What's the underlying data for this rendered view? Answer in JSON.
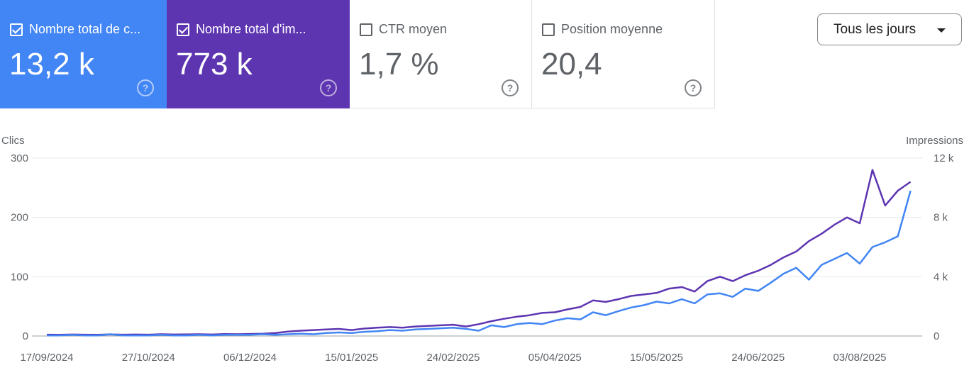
{
  "cards": [
    {
      "label": "Nombre total de c...",
      "value": "13,2 k",
      "checked": true,
      "color": "#4285f4"
    },
    {
      "label": "Nombre total d'im...",
      "value": "773 k",
      "checked": true,
      "color": "#5e35b1"
    },
    {
      "label": "CTR moyen",
      "value": "1,7 %",
      "checked": false
    },
    {
      "label": "Position moyenne",
      "value": "20,4",
      "checked": false
    }
  ],
  "help_icon": "?",
  "date_range": {
    "selected": "Tous les jours"
  },
  "chart_data": {
    "type": "line",
    "ylabel": "Clics",
    "y2label": "Impressions",
    "ylim": [
      0,
      300
    ],
    "y2lim": [
      0,
      12000
    ],
    "yticks": [
      "0",
      "100",
      "200",
      "300"
    ],
    "y2ticks": [
      "0",
      "4 k",
      "8 k",
      "12 k"
    ],
    "xticks": [
      "17/09/2024",
      "27/10/2024",
      "06/12/2024",
      "15/01/2025",
      "24/02/2025",
      "05/04/2025",
      "15/05/2025",
      "24/06/2025",
      "03/08/2025"
    ],
    "grid": true,
    "x": [
      "2024-09-17",
      "2024-09-22",
      "2024-09-27",
      "2024-10-02",
      "2024-10-07",
      "2024-10-12",
      "2024-10-17",
      "2024-10-22",
      "2024-10-27",
      "2024-11-01",
      "2024-11-06",
      "2024-11-11",
      "2024-11-16",
      "2024-11-21",
      "2024-11-26",
      "2024-12-01",
      "2024-12-06",
      "2024-12-11",
      "2024-12-16",
      "2024-12-21",
      "2024-12-26",
      "2024-12-31",
      "2025-01-05",
      "2025-01-10",
      "2025-01-15",
      "2025-01-20",
      "2025-01-25",
      "2025-01-30",
      "2025-02-04",
      "2025-02-09",
      "2025-02-14",
      "2025-02-19",
      "2025-02-24",
      "2025-03-01",
      "2025-03-06",
      "2025-03-11",
      "2025-03-16",
      "2025-03-21",
      "2025-03-26",
      "2025-03-31",
      "2025-04-05",
      "2025-04-10",
      "2025-04-15",
      "2025-04-20",
      "2025-04-25",
      "2025-04-30",
      "2025-05-05",
      "2025-05-10",
      "2025-05-15",
      "2025-05-20",
      "2025-05-25",
      "2025-05-30",
      "2025-06-04",
      "2025-06-09",
      "2025-06-14",
      "2025-06-19",
      "2025-06-24",
      "2025-06-29",
      "2025-07-04",
      "2025-07-09",
      "2025-07-14",
      "2025-07-19",
      "2025-07-24",
      "2025-07-29",
      "2025-08-03",
      "2025-08-08",
      "2025-08-13",
      "2025-08-18",
      "2025-08-23"
    ],
    "series": [
      {
        "name": "Clics",
        "axis": "left",
        "color": "#4285f4",
        "values": [
          1,
          1,
          2,
          1,
          1,
          3,
          1,
          1,
          1,
          2,
          1,
          1,
          2,
          1,
          2,
          2,
          2,
          3,
          2,
          3,
          4,
          3,
          5,
          6,
          5,
          7,
          8,
          10,
          9,
          11,
          12,
          13,
          14,
          12,
          9,
          18,
          15,
          20,
          22,
          20,
          26,
          30,
          28,
          40,
          35,
          42,
          48,
          52,
          58,
          55,
          62,
          55,
          70,
          72,
          66,
          80,
          76,
          90,
          105,
          115,
          95,
          120,
          130,
          140,
          122,
          150,
          158,
          168,
          245
        ]
      },
      {
        "name": "Impressions",
        "axis": "right",
        "color": "#5e35b1",
        "values": [
          90,
          80,
          100,
          90,
          80,
          110,
          90,
          100,
          90,
          120,
          100,
          110,
          120,
          100,
          130,
          120,
          140,
          160,
          200,
          300,
          360,
          400,
          440,
          480,
          400,
          500,
          560,
          600,
          560,
          640,
          680,
          720,
          760,
          640,
          800,
          1000,
          1160,
          1300,
          1400,
          1560,
          1600,
          1800,
          1960,
          2400,
          2300,
          2480,
          2700,
          2800,
          2900,
          3200,
          3300,
          3000,
          3700,
          4000,
          3700,
          4100,
          4400,
          4800,
          5300,
          5700,
          6400,
          6900,
          7500,
          8000,
          7600,
          11200,
          8800,
          9800,
          10400
        ]
      }
    ]
  }
}
